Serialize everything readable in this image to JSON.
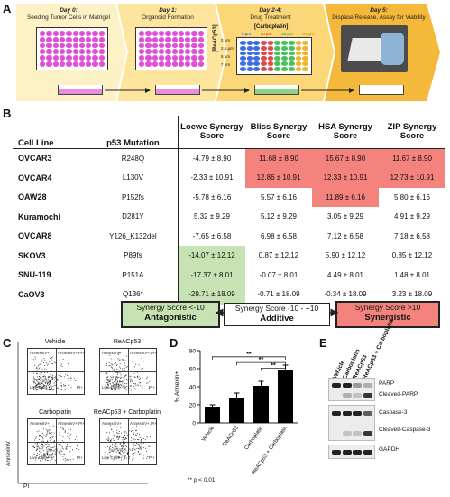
{
  "panels": {
    "a": "A",
    "b": "B",
    "c": "C",
    "d": "D",
    "e": "E"
  },
  "panel_a": {
    "steps": [
      {
        "day": "Day 0:",
        "text": "Seeding Tumor Cells in Matrigel"
      },
      {
        "day": "Day 1:",
        "text": "Organoid Formation"
      },
      {
        "day": "Day 2-4:",
        "text": "Drug Treatment"
      },
      {
        "day": "Day 5:",
        "text": "Dispase Release, Assay for Viability"
      }
    ],
    "matrix_title": "[Carboplatin]",
    "matrix_ylabel": "[ReACp53]",
    "conc_x": [
      "0 µm",
      "10 µm",
      "25 µm",
      "50 µm"
    ],
    "conc_y": [
      "0 µm",
      "2.5 µm",
      "5 µm",
      "7 µm"
    ],
    "colors": {
      "band": "#fde9a7",
      "band_dark": "#f6c242",
      "arrow": "#f0a92a",
      "well": "#e04fd6"
    }
  },
  "panel_b": {
    "headers": {
      "cell_line": "Cell Line",
      "p53": "p53 Mutation",
      "loewe": "Loewe Synergy Score",
      "bliss": "Bliss Synergy Score",
      "hsa": "HSA Synergy Score",
      "zip": "ZIP Synergy Score"
    },
    "rows": [
      {
        "cell": "OVCAR3",
        "mut": "R248Q",
        "loewe": "-4.79 ± 8.90",
        "bliss": "11.68 ± 8.90",
        "hsa": "15.67 ± 8.90",
        "zip": "11.67 ± 8.90"
      },
      {
        "cell": "OVCAR4",
        "mut": "L130V",
        "loewe": "-2.33 ± 10.91",
        "bliss": "12.86 ± 10.91",
        "hsa": "12.33 ± 10.91",
        "zip": "12.73 ± 10.91"
      },
      {
        "cell": "OAW28",
        "mut": "P152fs",
        "loewe": "-5.78 ± 6.16",
        "bliss": "5.57 ± 6.16",
        "hsa": "11.89 ± 6.16",
        "zip": "5.80 ± 6.16"
      },
      {
        "cell": "Kuramochi",
        "mut": "D281Y",
        "loewe": "5.32 ± 9.29",
        "bliss": "5.12 ± 9.29",
        "hsa": "3.05 ± 9.29",
        "zip": "4.91 ± 9.29"
      },
      {
        "cell": "OVCAR8",
        "mut": "Y126_K132del",
        "loewe": "-7.65 ± 6.58",
        "bliss": "6.98 ± 6.58",
        "hsa": "7.12 ± 6.58",
        "zip": "7.18 ± 6.58"
      },
      {
        "cell": "SKOV3",
        "mut": "P89fs",
        "loewe": "-14.07 ± 12.12",
        "bliss": "0.87 ± 12.12",
        "hsa": "5.90 ± 12.12",
        "zip": "0.85 ± 12.12"
      },
      {
        "cell": "SNU-119",
        "mut": "P151A",
        "loewe": "-17.37 ± 8.01",
        "bliss": "-0.07 ± 8.01",
        "hsa": "4.49 ± 8.01",
        "zip": "1.48 ± 8.01"
      },
      {
        "cell": "CaOV3",
        "mut": "Q136*",
        "loewe": "-29.71 ± 18.09",
        "bliss": "-0.71 ± 18.09",
        "hsa": "-0.34 ± 18.09",
        "zip": "3.23 ± 18.09"
      }
    ],
    "legend": {
      "antagonistic_range": "Synergy Score <-10",
      "antagonistic": "Antagonistic",
      "additive_range": "Synergy Score -10 - +10",
      "additive": "Additive",
      "synergistic_range": "Synergy Score >10",
      "synergistic": "Synergistic"
    }
  },
  "panel_c": {
    "plots": [
      {
        "title": "Vehicle"
      },
      {
        "title": "ReACp53"
      },
      {
        "title": "Carboplatin"
      },
      {
        "title": "ReACp53 + Carboplatin"
      }
    ],
    "quadrants": {
      "ul": "AnnexinV+",
      "ur": "AnnexinV+,PI+",
      "ll": "Live Cells",
      "lr": "PI+"
    },
    "xlabel": "PI",
    "ylabel": "AnnexinV"
  },
  "chart_data": {
    "type": "bar",
    "categories": [
      "Vehicle",
      "ReACp53",
      "Carboplatin",
      "ReACp53 + Carboplatin"
    ],
    "values": [
      18,
      28,
      41,
      59
    ],
    "errors": [
      2,
      5,
      5,
      5
    ],
    "ylabel": "% Annexin+",
    "ylim": [
      0,
      80
    ],
    "yticks": [
      0,
      20,
      40,
      60,
      80
    ],
    "significance": "**",
    "footnote": "** p < 0.01"
  },
  "panel_e": {
    "lanes": [
      "Vehicle",
      "Carboplatin",
      "ReACp53",
      "ReACp53 + Carboplatin"
    ],
    "labels": [
      "PARP",
      "Cleaved-PARP",
      "Caspase-3",
      "Cleaved-Caspase-3",
      "GAPDH"
    ]
  }
}
